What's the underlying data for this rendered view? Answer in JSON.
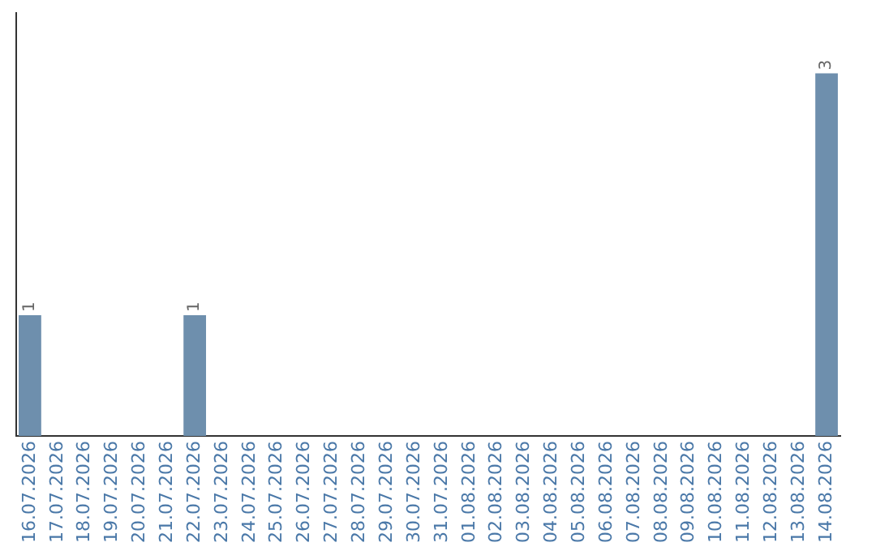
{
  "chart_data": {
    "type": "bar",
    "categories": [
      "16.07.2026",
      "17.07.2026",
      "18.07.2026",
      "19.07.2026",
      "20.07.2026",
      "21.07.2026",
      "22.07.2026",
      "23.07.2026",
      "24.07.2026",
      "25.07.2026",
      "26.07.2026",
      "27.07.2026",
      "28.07.2026",
      "29.07.2026",
      "30.07.2026",
      "31.07.2026",
      "01.08.2026",
      "02.08.2026",
      "03.08.2026",
      "04.08.2026",
      "05.08.2026",
      "06.08.2026",
      "07.08.2026",
      "08.08.2026",
      "09.08.2026",
      "10.08.2026",
      "11.08.2026",
      "12.08.2026",
      "13.08.2026",
      "14.08.2026"
    ],
    "values": [
      1,
      0,
      0,
      0,
      0,
      0,
      1,
      0,
      0,
      0,
      0,
      0,
      0,
      0,
      0,
      0,
      0,
      0,
      0,
      0,
      0,
      0,
      0,
      0,
      0,
      0,
      0,
      0,
      0,
      3
    ],
    "value_labels": [
      "1",
      null,
      null,
      null,
      null,
      null,
      "1",
      null,
      null,
      null,
      null,
      null,
      null,
      null,
      null,
      null,
      null,
      null,
      null,
      null,
      null,
      null,
      null,
      null,
      null,
      null,
      null,
      null,
      null,
      "3"
    ],
    "color": "#6e8fad",
    "grid": false,
    "legend": false
  }
}
